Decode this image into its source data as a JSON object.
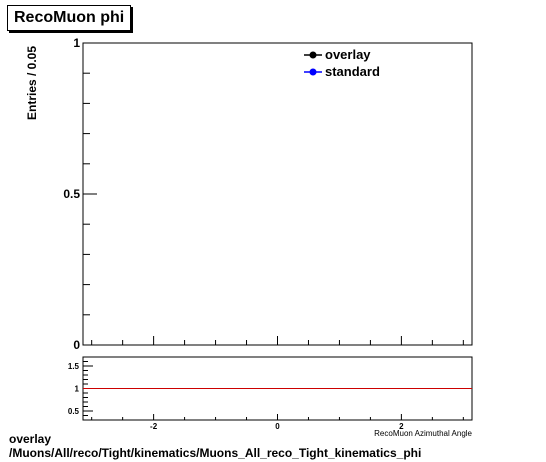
{
  "title": "RecoMuon phi",
  "footer": {
    "line1": "overlay",
    "line2": "/Muons/All/reco/Tight/kinematics/Muons_All_reco_Tight_kinematics_phi"
  },
  "chart_data": [
    {
      "type": "line",
      "title": "RecoMuon phi",
      "xlabel": "RecoMuon Azimuthal Angle",
      "ylabel": "Entries / 0.05",
      "xlim": [
        -3.14,
        3.14
      ],
      "ylim": [
        0,
        1
      ],
      "y_tick_labels": [
        "0",
        "0.5",
        "1"
      ],
      "y_ticks": [
        0,
        0.5,
        1
      ],
      "legend": {
        "placement": "top-right",
        "entries": [
          "overlay",
          "standard"
        ]
      },
      "series": [
        {
          "name": "overlay",
          "color": "#000000",
          "x": [],
          "y": []
        },
        {
          "name": "standard",
          "color": "#0000ff",
          "x": [],
          "y": []
        }
      ]
    },
    {
      "type": "line",
      "xlim": [
        -3.14,
        3.14
      ],
      "ylim": [
        0.3,
        1.7
      ],
      "x_ticks": [
        -2,
        0,
        2
      ],
      "x_tick_labels": [
        "-2",
        "0",
        "2"
      ],
      "y_ticks": [
        0.5,
        1,
        1.5
      ],
      "y_tick_labels": [
        "0.5",
        "1",
        "1.5"
      ],
      "series": [
        {
          "color": "#cc0000",
          "x": [
            -3.14,
            3.14
          ],
          "y": [
            1,
            1
          ]
        }
      ]
    }
  ]
}
